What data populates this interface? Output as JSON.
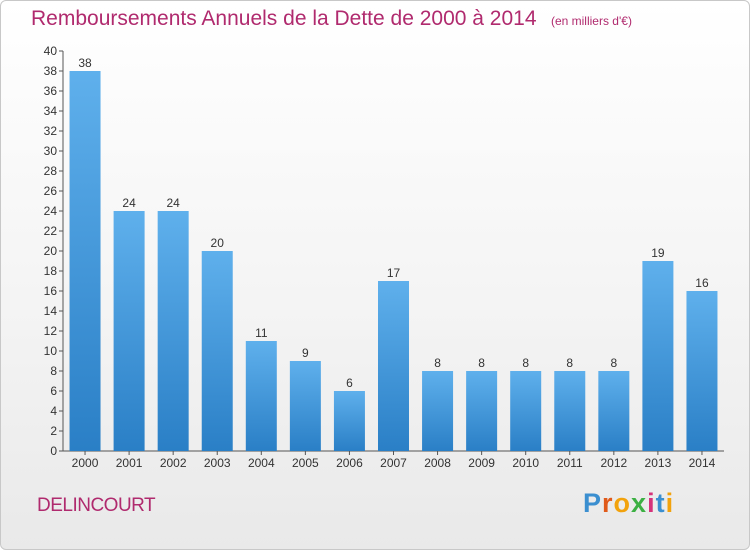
{
  "header": {
    "title": "Remboursements Annuels de la Dette de 2000 à 2014",
    "unit": "(en milliers d'€)"
  },
  "commune": "DELINCOURT",
  "brand": {
    "text": "Proxiti",
    "letters": [
      "P",
      "r",
      "o",
      "x",
      "i",
      "t",
      "i"
    ],
    "colors": [
      "#3b8fd0",
      "#e05a1a",
      "#f2a20c",
      "#3cb043",
      "#d6327a",
      "#3b8fd0",
      "#f2a20c"
    ]
  },
  "colors": {
    "bar_top": "#5fb0ec",
    "bar_bottom": "#2a7fc6",
    "title": "#b02a6e"
  },
  "chart_data": {
    "type": "bar",
    "title": "Remboursements Annuels de la Dette de 2000 à 2014",
    "xlabel": "",
    "ylabel": "",
    "categories": [
      "2000",
      "2001",
      "2002",
      "2003",
      "2004",
      "2005",
      "2006",
      "2007",
      "2008",
      "2009",
      "2010",
      "2011",
      "2012",
      "2013",
      "2014"
    ],
    "values": [
      38,
      24,
      24,
      20,
      11,
      9,
      6,
      17,
      8,
      8,
      8,
      8,
      8,
      19,
      16
    ],
    "ylim": [
      0,
      40
    ],
    "ytick_step": 2,
    "grid": false,
    "legend": "none"
  }
}
